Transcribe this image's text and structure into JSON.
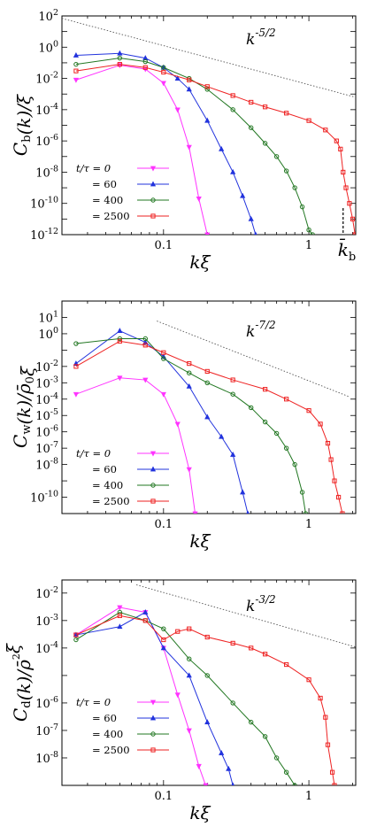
{
  "colors": {
    "t0": "#ff33ff",
    "t60": "#2233dd",
    "t400": "#227722",
    "t2500": "#ee2222",
    "axis": "#000000",
    "ref": "#555555"
  },
  "xticks": [
    {
      "v": 0.1,
      "label": "0.1"
    },
    {
      "v": 1,
      "label": "1"
    }
  ],
  "chart_data": [
    {
      "type": "line",
      "xscale": "log",
      "yscale": "log",
      "xlabel": "kξ",
      "ylabel": "C_b(k)/ξ",
      "xlim": [
        0.02,
        2.1
      ],
      "ylim": [
        1e-12,
        100
      ],
      "yticks": [
        {
          "v": 100,
          "label": "10^2"
        },
        {
          "v": 1,
          "label": "10^0"
        },
        {
          "v": 0.01,
          "label": "10^-2"
        },
        {
          "v": 0.0001,
          "label": "10^-4"
        },
        {
          "v": 1e-06,
          "label": "10^-6"
        },
        {
          "v": 1e-08,
          "label": "10^-8"
        },
        {
          "v": 1e-10,
          "label": "10^-10"
        },
        {
          "v": 1e-12,
          "label": "10^-12"
        }
      ],
      "reference_line": {
        "label": "k^-5/2",
        "exponent": -2.5,
        "x": [
          0.02,
          2.1
        ],
        "y_start": 70
      },
      "annotation": {
        "label": "k̄_b",
        "x": 1.72
      },
      "series": [
        {
          "name": "t/τ = 0",
          "marker": "tri-down",
          "x": [
            0.025,
            0.05,
            0.075,
            0.1,
            0.125,
            0.15,
            0.175,
            0.2
          ],
          "y": [
            0.008,
            0.07,
            0.04,
            0.005,
            0.0001,
            4e-07,
            2e-10,
            1e-12
          ]
        },
        {
          "name": "= 60",
          "marker": "tri-up",
          "x": [
            0.025,
            0.05,
            0.075,
            0.1,
            0.125,
            0.15,
            0.2,
            0.25,
            0.3,
            0.35,
            0.4,
            0.43
          ],
          "y": [
            0.3,
            0.4,
            0.2,
            0.05,
            0.01,
            0.002,
            2e-05,
            3e-07,
            1e-08,
            3e-10,
            1e-11,
            1e-12
          ]
        },
        {
          "name": "= 400",
          "marker": "circle",
          "x": [
            0.025,
            0.05,
            0.075,
            0.1,
            0.15,
            0.2,
            0.3,
            0.4,
            0.5,
            0.6,
            0.7,
            0.8,
            0.9,
            1.0,
            1.06
          ],
          "y": [
            0.08,
            0.2,
            0.12,
            0.05,
            0.01,
            0.002,
            0.0001,
            7e-06,
            7e-07,
            1e-07,
            1.2e-08,
            1e-09,
            6e-11,
            2e-12,
            1e-12
          ]
        },
        {
          "name": "= 2500",
          "marker": "square",
          "x": [
            0.025,
            0.05,
            0.075,
            0.1,
            0.15,
            0.2,
            0.3,
            0.4,
            0.5,
            0.7,
            1.0,
            1.3,
            1.55,
            1.65,
            1.72,
            1.8,
            1.9,
            2.0,
            2.08
          ],
          "y": [
            0.03,
            0.08,
            0.05,
            0.025,
            0.008,
            0.003,
            0.0008,
            0.0003,
            0.00015,
            6e-05,
            2e-05,
            5e-06,
            1e-06,
            3e-07,
            1e-08,
            1e-09,
            1e-10,
            1e-11,
            1e-12
          ]
        }
      ]
    },
    {
      "type": "line",
      "xscale": "log",
      "yscale": "log",
      "xlabel": "kξ",
      "ylabel": "C_w(k)/ρ̄₀ξ",
      "xlim": [
        0.02,
        2.1
      ],
      "ylim": [
        1e-11,
        100
      ],
      "yticks": [
        {
          "v": 10,
          "label": "10^1"
        },
        {
          "v": 1,
          "label": "10^0"
        },
        {
          "v": 0.01,
          "label": "10^-2"
        },
        {
          "v": 0.001,
          "label": "10^-3"
        },
        {
          "v": 0.0001,
          "label": "10^-4"
        },
        {
          "v": 1e-05,
          "label": "10^-5"
        },
        {
          "v": 1e-06,
          "label": "10^-6"
        },
        {
          "v": 1e-07,
          "label": "10^-7"
        },
        {
          "v": 1e-08,
          "label": "10^-8"
        },
        {
          "v": 1e-10,
          "label": "10^-10"
        }
      ],
      "reference_line": {
        "label": "k^-7/2",
        "exponent": -3.5,
        "x": [
          0.09,
          1.9
        ],
        "y_start": 6
      },
      "series": [
        {
          "name": "t/τ = 0",
          "marker": "tri-down",
          "x": [
            0.025,
            0.05,
            0.075,
            0.1,
            0.125,
            0.15,
            0.165
          ],
          "y": [
            0.0002,
            0.002,
            0.0015,
            0.0002,
            3e-06,
            5e-09,
            1e-11
          ]
        },
        {
          "name": "= 60",
          "marker": "tri-up",
          "x": [
            0.025,
            0.05,
            0.075,
            0.1,
            0.15,
            0.2,
            0.25,
            0.3,
            0.35,
            0.38
          ],
          "y": [
            0.015,
            1.5,
            0.3,
            0.04,
            0.0006,
            8e-06,
            5e-07,
            4e-08,
            2e-10,
            1e-11
          ]
        },
        {
          "name": "= 400",
          "marker": "circle",
          "x": [
            0.025,
            0.05,
            0.075,
            0.1,
            0.15,
            0.2,
            0.3,
            0.4,
            0.5,
            0.6,
            0.7,
            0.8,
            0.9,
            0.95
          ],
          "y": [
            0.25,
            0.5,
            0.5,
            0.03,
            0.004,
            0.001,
            0.0002,
            3e-05,
            4e-06,
            8e-07,
            1e-07,
            1e-08,
            2e-10,
            1e-11
          ]
        },
        {
          "name": "= 2500",
          "marker": "square",
          "x": [
            0.025,
            0.05,
            0.075,
            0.1,
            0.15,
            0.2,
            0.3,
            0.5,
            0.7,
            1.0,
            1.2,
            1.35,
            1.42,
            1.5,
            1.6,
            1.7
          ],
          "y": [
            0.01,
            0.35,
            0.2,
            0.07,
            0.015,
            0.005,
            0.0015,
            0.0004,
            0.0001,
            2e-05,
            3e-06,
            2e-07,
            2e-08,
            1e-09,
            1e-10,
            1e-11
          ]
        }
      ]
    },
    {
      "type": "line",
      "xscale": "log",
      "yscale": "log",
      "xlabel": "kξ",
      "ylabel": "C_d(k)/ρ̄₀²ξ",
      "xlim": [
        0.02,
        2.1
      ],
      "ylim": [
        1e-09,
        0.03
      ],
      "yticks": [
        {
          "v": 0.01,
          "label": "10^-2"
        },
        {
          "v": 0.001,
          "label": "10^-3"
        },
        {
          "v": 0.0001,
          "label": "10^-4"
        },
        {
          "v": 1e-06,
          "label": "10^-6"
        },
        {
          "v": 1e-07,
          "label": "10^-7"
        },
        {
          "v": 1e-08,
          "label": "10^-8"
        }
      ],
      "reference_line": {
        "label": "k^-3/2",
        "exponent": -1.5,
        "x": [
          0.065,
          2.1
        ],
        "y_start": 0.02
      },
      "series": [
        {
          "name": "t/τ = 0",
          "marker": "tri-down",
          "x": [
            0.025,
            0.05,
            0.075,
            0.1,
            0.125,
            0.15,
            0.175,
            0.195
          ],
          "y": [
            0.0003,
            0.003,
            0.002,
            0.0001,
            2e-06,
            1e-07,
            5e-09,
            1e-09
          ]
        },
        {
          "name": "= 60",
          "marker": "tri-up",
          "x": [
            0.025,
            0.05,
            0.075,
            0.1,
            0.15,
            0.2,
            0.25,
            0.28,
            0.3
          ],
          "y": [
            0.0003,
            0.0006,
            0.002,
            0.0001,
            1e-05,
            2e-07,
            1.5e-08,
            4e-09,
            1e-09
          ]
        },
        {
          "name": "= 400",
          "marker": "circle",
          "x": [
            0.025,
            0.05,
            0.075,
            0.1,
            0.15,
            0.2,
            0.3,
            0.4,
            0.5,
            0.6,
            0.7,
            0.8
          ],
          "y": [
            0.0002,
            0.002,
            0.001,
            0.0005,
            4e-05,
            1e-05,
            1e-06,
            2e-07,
            6e-08,
            1e-08,
            3e-09,
            1e-09
          ]
        },
        {
          "name": "= 2500",
          "marker": "square",
          "x": [
            0.025,
            0.05,
            0.075,
            0.1,
            0.125,
            0.15,
            0.2,
            0.3,
            0.4,
            0.5,
            0.7,
            1.0,
            1.2,
            1.3,
            1.35,
            1.45,
            1.5
          ],
          "y": [
            0.0003,
            0.0015,
            0.001,
            0.0002,
            0.0004,
            0.0005,
            0.00025,
            0.00015,
            0.0001,
            6e-05,
            2.5e-05,
            7e-06,
            1.5e-06,
            3e-07,
            3e-08,
            3e-09,
            1e-09
          ]
        }
      ]
    }
  ]
}
